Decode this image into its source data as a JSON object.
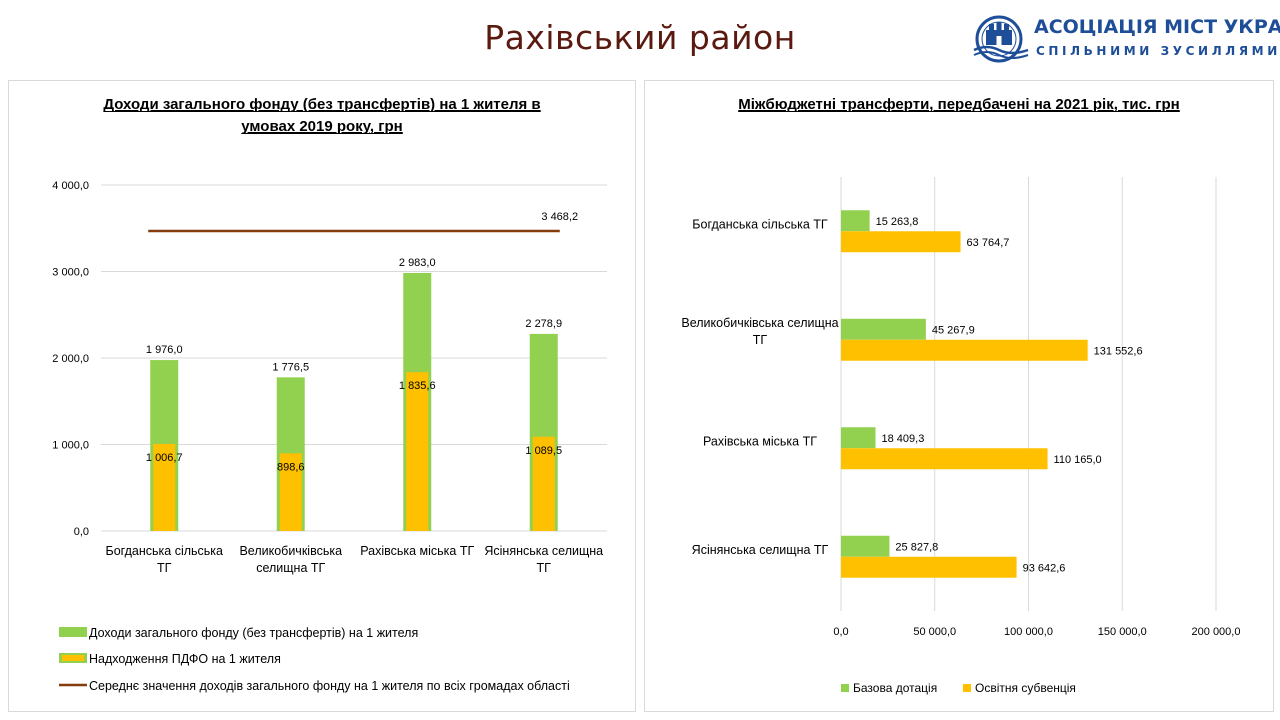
{
  "page": {
    "title": "Рахівський район",
    "logo": {
      "org_name": "АСОЦІАЦІЯ МІСТ УКРАЇНИ",
      "tagline": "СПІЛЬНИМИ ЗУСИЛЛЯМИ",
      "colors": {
        "brand": "#1f4e99"
      }
    }
  },
  "chart_data": [
    {
      "type": "bar",
      "title": "Доходи загального фонду (без трансфертів) на 1 жителя в умовах 2019 року, грн",
      "categories": [
        [
          "Богданська сільська",
          "ТГ"
        ],
        [
          "Великобичківська",
          "селищна ТГ"
        ],
        [
          "Рахівська міська ТГ"
        ],
        [
          "Ясінянська селищна",
          "ТГ"
        ]
      ],
      "series": [
        {
          "name": "Доходи загального фонду (без трансфертів) на 1 жителя",
          "values": [
            1976.0,
            1776.5,
            2983.0,
            2278.9
          ],
          "labels": [
            "1 976,0",
            "1 776,5",
            "2 983,0",
            "2 278,9"
          ],
          "color": "#92d050"
        },
        {
          "name": "Надходження ПДФО на 1 жителя",
          "values": [
            1006.7,
            898.6,
            1835.6,
            1089.5
          ],
          "labels": [
            "1 006,7",
            "898,6",
            "1 835,6",
            "1 089,5"
          ],
          "color": "#ffc000"
        }
      ],
      "average_line": {
        "name": "Середнє значення доходів загального фонду на 1 жителя по всіх громадах області",
        "value": 3468.2,
        "label": "3 468,2",
        "color": "#843c0c"
      },
      "ylim": [
        0,
        4000
      ],
      "yticks": [
        0,
        1000,
        2000,
        3000,
        4000
      ],
      "ytick_labels": [
        "0,0",
        "1 000,0",
        "2 000,0",
        "3 000,0",
        "4 000,0"
      ],
      "grid": true,
      "legend_position": "bottom"
    },
    {
      "type": "bar",
      "orientation": "horizontal",
      "title": "Міжбюджетні трансферти, передбачені на 2021 рік, тис. грн",
      "categories": [
        [
          "Богданська сільська ТГ"
        ],
        [
          "Великобичківська селищна",
          "ТГ"
        ],
        [
          "Рахівська міська ТГ"
        ],
        [
          "Ясінянська селищна ТГ"
        ]
      ],
      "series": [
        {
          "name": "Базова дотація",
          "values": [
            15263.8,
            45267.9,
            18409.3,
            25827.8
          ],
          "labels": [
            "15 263,8",
            "45 267,9",
            "18 409,3",
            "25 827,8"
          ],
          "color": "#92d050"
        },
        {
          "name": "Освітня субвенція",
          "values": [
            63764.7,
            131552.6,
            110165.0,
            93642.6
          ],
          "labels": [
            "63 764,7",
            "131 552,6",
            "110 165,0",
            "93 642,6"
          ],
          "color": "#ffc000"
        }
      ],
      "xlim": [
        0,
        200000
      ],
      "xticks": [
        0,
        50000,
        100000,
        150000,
        200000
      ],
      "xtick_labels": [
        "0,0",
        "50 000,0",
        "100 000,0",
        "150 000,0",
        "200 000,0"
      ],
      "grid": true,
      "legend_position": "bottom"
    }
  ]
}
